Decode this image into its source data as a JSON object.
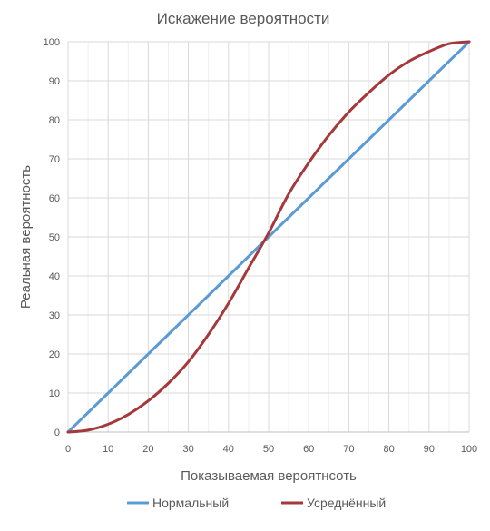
{
  "chart_data": {
    "type": "line",
    "title": "Искажение вероятности",
    "xlabel": "Показываемая вероятнсоть",
    "ylabel": "Реальная вероятность",
    "xlim": [
      0,
      100
    ],
    "ylim": [
      0,
      100
    ],
    "x_ticks": [
      "0",
      "10",
      "20",
      "30",
      "40",
      "50",
      "60",
      "70",
      "80",
      "90",
      "100"
    ],
    "y_ticks": [
      "0",
      "10",
      "20",
      "30",
      "40",
      "50",
      "60",
      "70",
      "80",
      "90",
      "100"
    ],
    "grid": true,
    "minor_grid_x": true,
    "legend_position": "bottom",
    "x": [
      0,
      5,
      10,
      15,
      20,
      25,
      30,
      35,
      40,
      45,
      50,
      55,
      60,
      65,
      70,
      75,
      80,
      85,
      90,
      95,
      100
    ],
    "series": [
      {
        "name": "Нормальный",
        "color": "#5B9BD5",
        "values": [
          0,
          5,
          10,
          15,
          20,
          25,
          30,
          35,
          40,
          45,
          50,
          55,
          60,
          65,
          70,
          75,
          80,
          85,
          90,
          95,
          100
        ]
      },
      {
        "name": "Усреднённый",
        "color": "#A5383B",
        "values": [
          0,
          0.5,
          2,
          4.5,
          8,
          12.5,
          18,
          25,
          33,
          42,
          51,
          61,
          69,
          76,
          82,
          87,
          91.5,
          95,
          97.5,
          99.5,
          100
        ]
      }
    ]
  }
}
